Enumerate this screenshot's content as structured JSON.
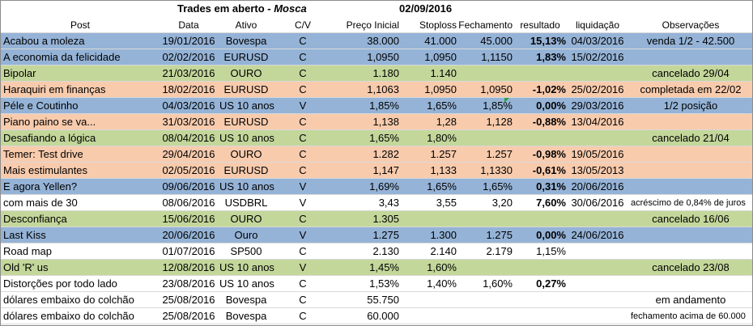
{
  "title": {
    "main": "Trades em aberto - ",
    "name": "Mosca",
    "date": "02/09/2016"
  },
  "headers": {
    "post": "Post",
    "data": "Data",
    "ativo": "Ativo",
    "cv": "C/V",
    "preco": "Preço Inicial",
    "stop": "Stoploss",
    "fech": "Fechamento",
    "res": "resultado",
    "liq": "liquidação",
    "obs": "Observações"
  },
  "colors": {
    "blue": "#95b3d7",
    "green": "#c4d79b",
    "orange": "#f8cbad",
    "white": "#ffffff"
  },
  "rows": [
    {
      "post": "Acabou a moleza",
      "data": "19/01/2016",
      "ativo": "Bovespa",
      "cv": "C",
      "preco": "38.000",
      "stop": "41.000",
      "fech": "45.000",
      "res": "15,13%",
      "liq": "04/03/2016",
      "obs": "venda 1/2 - 42.500",
      "color": "blue"
    },
    {
      "post": "A economia da felicidade",
      "data": "02/02/2016",
      "ativo": "EURUSD",
      "cv": "C",
      "preco": "1,0950",
      "stop": "1,0950",
      "fech": "1,1150",
      "res": "1,83%",
      "liq": "15/02/2016",
      "obs": "",
      "color": "blue"
    },
    {
      "post": "Bipolar",
      "data": "21/03/2016",
      "ativo": "OURO",
      "cv": "C",
      "preco": "1.180",
      "stop": "1.140",
      "fech": "",
      "res": "",
      "liq": "",
      "obs": "cancelado 29/04",
      "color": "green"
    },
    {
      "post": "Haraquiri em finanças",
      "data": "18/02/2016",
      "ativo": "EURUSD",
      "cv": "C",
      "preco": "1,1063",
      "stop": "1,0950",
      "fech": "1,0950",
      "res": "-1,02%",
      "liq": "25/02/2016",
      "obs": "completada em 22/02",
      "color": "orange"
    },
    {
      "post": "Péle e Coutinho",
      "data": "04/03/2016",
      "ativo": "US 10 anos",
      "cv": "V",
      "preco": "1,85%",
      "stop": "1,65%",
      "fech": "1,85%",
      "res": "0,00%",
      "liq": "29/03/2016",
      "obs": "1/2 posição",
      "color": "blue"
    },
    {
      "post": "Piano paino se va...",
      "data": "31/03/2016",
      "ativo": "EURUSD",
      "cv": "C",
      "preco": "1,138",
      "stop": "1,28",
      "fech": "1,128",
      "res": "-0,88%",
      "liq": "13/04/2016",
      "obs": "",
      "color": "orange"
    },
    {
      "post": "Desafiando a lógica",
      "data": "08/04/2016",
      "ativo": "US 10 anos",
      "cv": "C",
      "preco": "1,65%",
      "stop": "1,80%",
      "fech": "",
      "res": "",
      "liq": "",
      "obs": "cancelado 21/04",
      "color": "green"
    },
    {
      "post": "Temer: Test drive",
      "data": "29/04/2016",
      "ativo": "OURO",
      "cv": "C",
      "preco": "1.282",
      "stop": "1.257",
      "fech": "1.257",
      "res": "-0,98%",
      "liq": "19/05/2016",
      "obs": "",
      "color": "orange"
    },
    {
      "post": "Mais estimulantes",
      "data": "02/05/2016",
      "ativo": "EURUSD",
      "cv": "C",
      "preco": "1,147",
      "stop": "1,133",
      "fech": "1,1330",
      "res": "-0,61%",
      "liq": "13/05/2013",
      "obs": "",
      "color": "orange"
    },
    {
      "post": "E agora Yellen?",
      "data": "09/06/2016",
      "ativo": "US 10 anos",
      "cv": "V",
      "preco": "1,69%",
      "stop": "1,65%",
      "fech": "1,65%",
      "res": "0,31%",
      "liq": "20/06/2016",
      "obs": "",
      "color": "blue"
    },
    {
      "post": "com mais de 30",
      "data": "08/06/2016",
      "ativo": "USDBRL",
      "cv": "V",
      "preco": "3,43",
      "stop": "3,55",
      "fech": "3,20",
      "res": "7,60%",
      "liq": "30/06/2016",
      "obs": "acréscimo de 0,84% de juros",
      "color": "white",
      "obs_small": true
    },
    {
      "post": "Desconfiança",
      "data": "15/06/2016",
      "ativo": "OURO",
      "cv": "C",
      "preco": "1.305",
      "stop": "",
      "fech": "",
      "res": "",
      "liq": "",
      "obs": "cancelado 16/06",
      "color": "green"
    },
    {
      "post": "Last Kiss",
      "data": "20/06/2016",
      "ativo": "Ouro",
      "cv": "V",
      "preco": "1.275",
      "stop": "1.300",
      "fech": "1.275",
      "res": "0,00%",
      "liq": "24/06/2016",
      "obs": "",
      "color": "blue"
    },
    {
      "post": "Road map",
      "data": "01/07/2016",
      "ativo": "SP500",
      "cv": "C",
      "preco": "2.130",
      "stop": "2.140",
      "fech": "2.179",
      "res": "1,15%",
      "liq": "",
      "obs": "",
      "color": "white",
      "res_plain": true
    },
    {
      "post": "Old 'R' us",
      "data": "12/08/2016",
      "ativo": "US 10 anos",
      "cv": "V",
      "preco": "1,45%",
      "stop": "1,60%",
      "fech": "",
      "res": "",
      "liq": "",
      "obs": "cancelado 23/08",
      "color": "green"
    },
    {
      "post": "Distorções por todo lado",
      "data": "23/08/2016",
      "ativo": "US 10 anos",
      "cv": "C",
      "preco": "1,53%",
      "stop": "1,40%",
      "fech": "1,60%",
      "res": "0,27%",
      "liq": "",
      "obs": "",
      "color": "white"
    },
    {
      "post": "dólares embaixo do colchão",
      "data": "25/08/2016",
      "ativo": "Bovespa",
      "cv": "C",
      "preco": "55.750",
      "stop": "",
      "fech": "",
      "res": "",
      "liq": "",
      "obs": "em andamento",
      "color": "white"
    },
    {
      "post": "dólares embaixo do colchão",
      "data": "25/08/2016",
      "ativo": "Bovespa",
      "cv": "C",
      "preco": "60.000",
      "stop": "",
      "fech": "",
      "res": "",
      "liq": "",
      "obs": "fechamento acima de 60.000",
      "color": "white",
      "obs_small": true
    }
  ]
}
